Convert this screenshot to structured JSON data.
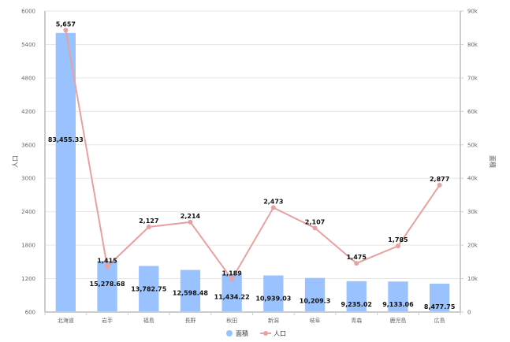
{
  "chart_data": {
    "type": "bar",
    "categories": [
      "北海道",
      "岩手",
      "福島",
      "長野",
      "秋田",
      "新潟",
      "岐阜",
      "青森",
      "鹿児島",
      "広島"
    ],
    "series": [
      {
        "name": "面積",
        "type": "bar",
        "axis": "right",
        "color": "#99c2ff",
        "values": [
          83455.33,
          15278.68,
          13782.75,
          12598.48,
          11434.22,
          10939.03,
          10209.3,
          9235.02,
          9133.06,
          8477.75
        ],
        "labels": [
          "83,455.33",
          "15,278.68",
          "13,782.75",
          "12,598.48",
          "11,434.22",
          "10,939.03",
          "10,209.3",
          "9,235.02",
          "9,133.06",
          "8,477.75"
        ]
      },
      {
        "name": "人口",
        "type": "line",
        "axis": "left",
        "color": "#e8a0a0",
        "values": [
          5657,
          1415,
          2127,
          2214,
          1189,
          2473,
          2107,
          1475,
          1785,
          2877
        ],
        "labels": [
          "5,657",
          "1,415",
          "2,127",
          "2,214",
          "1,189",
          "2,473",
          "2,107",
          "1,475",
          "1,785",
          "2,877"
        ]
      }
    ],
    "y_left": {
      "label": "人口",
      "range": [
        600,
        6000
      ],
      "ticks": [
        600,
        1200,
        1800,
        2400,
        3000,
        3600,
        4200,
        4800,
        5400,
        6000
      ],
      "tick_labels": [
        "600",
        "1200",
        "1800",
        "2400",
        "3000",
        "3600",
        "4200",
        "4800",
        "5400",
        "6000"
      ]
    },
    "y_right": {
      "label": "面積",
      "range": [
        0,
        90000
      ],
      "ticks": [
        0,
        10000,
        20000,
        30000,
        40000,
        50000,
        60000,
        70000,
        80000,
        90000
      ],
      "tick_labels": [
        "0",
        "10k",
        "20k",
        "30k",
        "40k",
        "50k",
        "60k",
        "70k",
        "80k",
        "90k"
      ]
    },
    "grid": true,
    "legend_position": "bottom-center"
  }
}
